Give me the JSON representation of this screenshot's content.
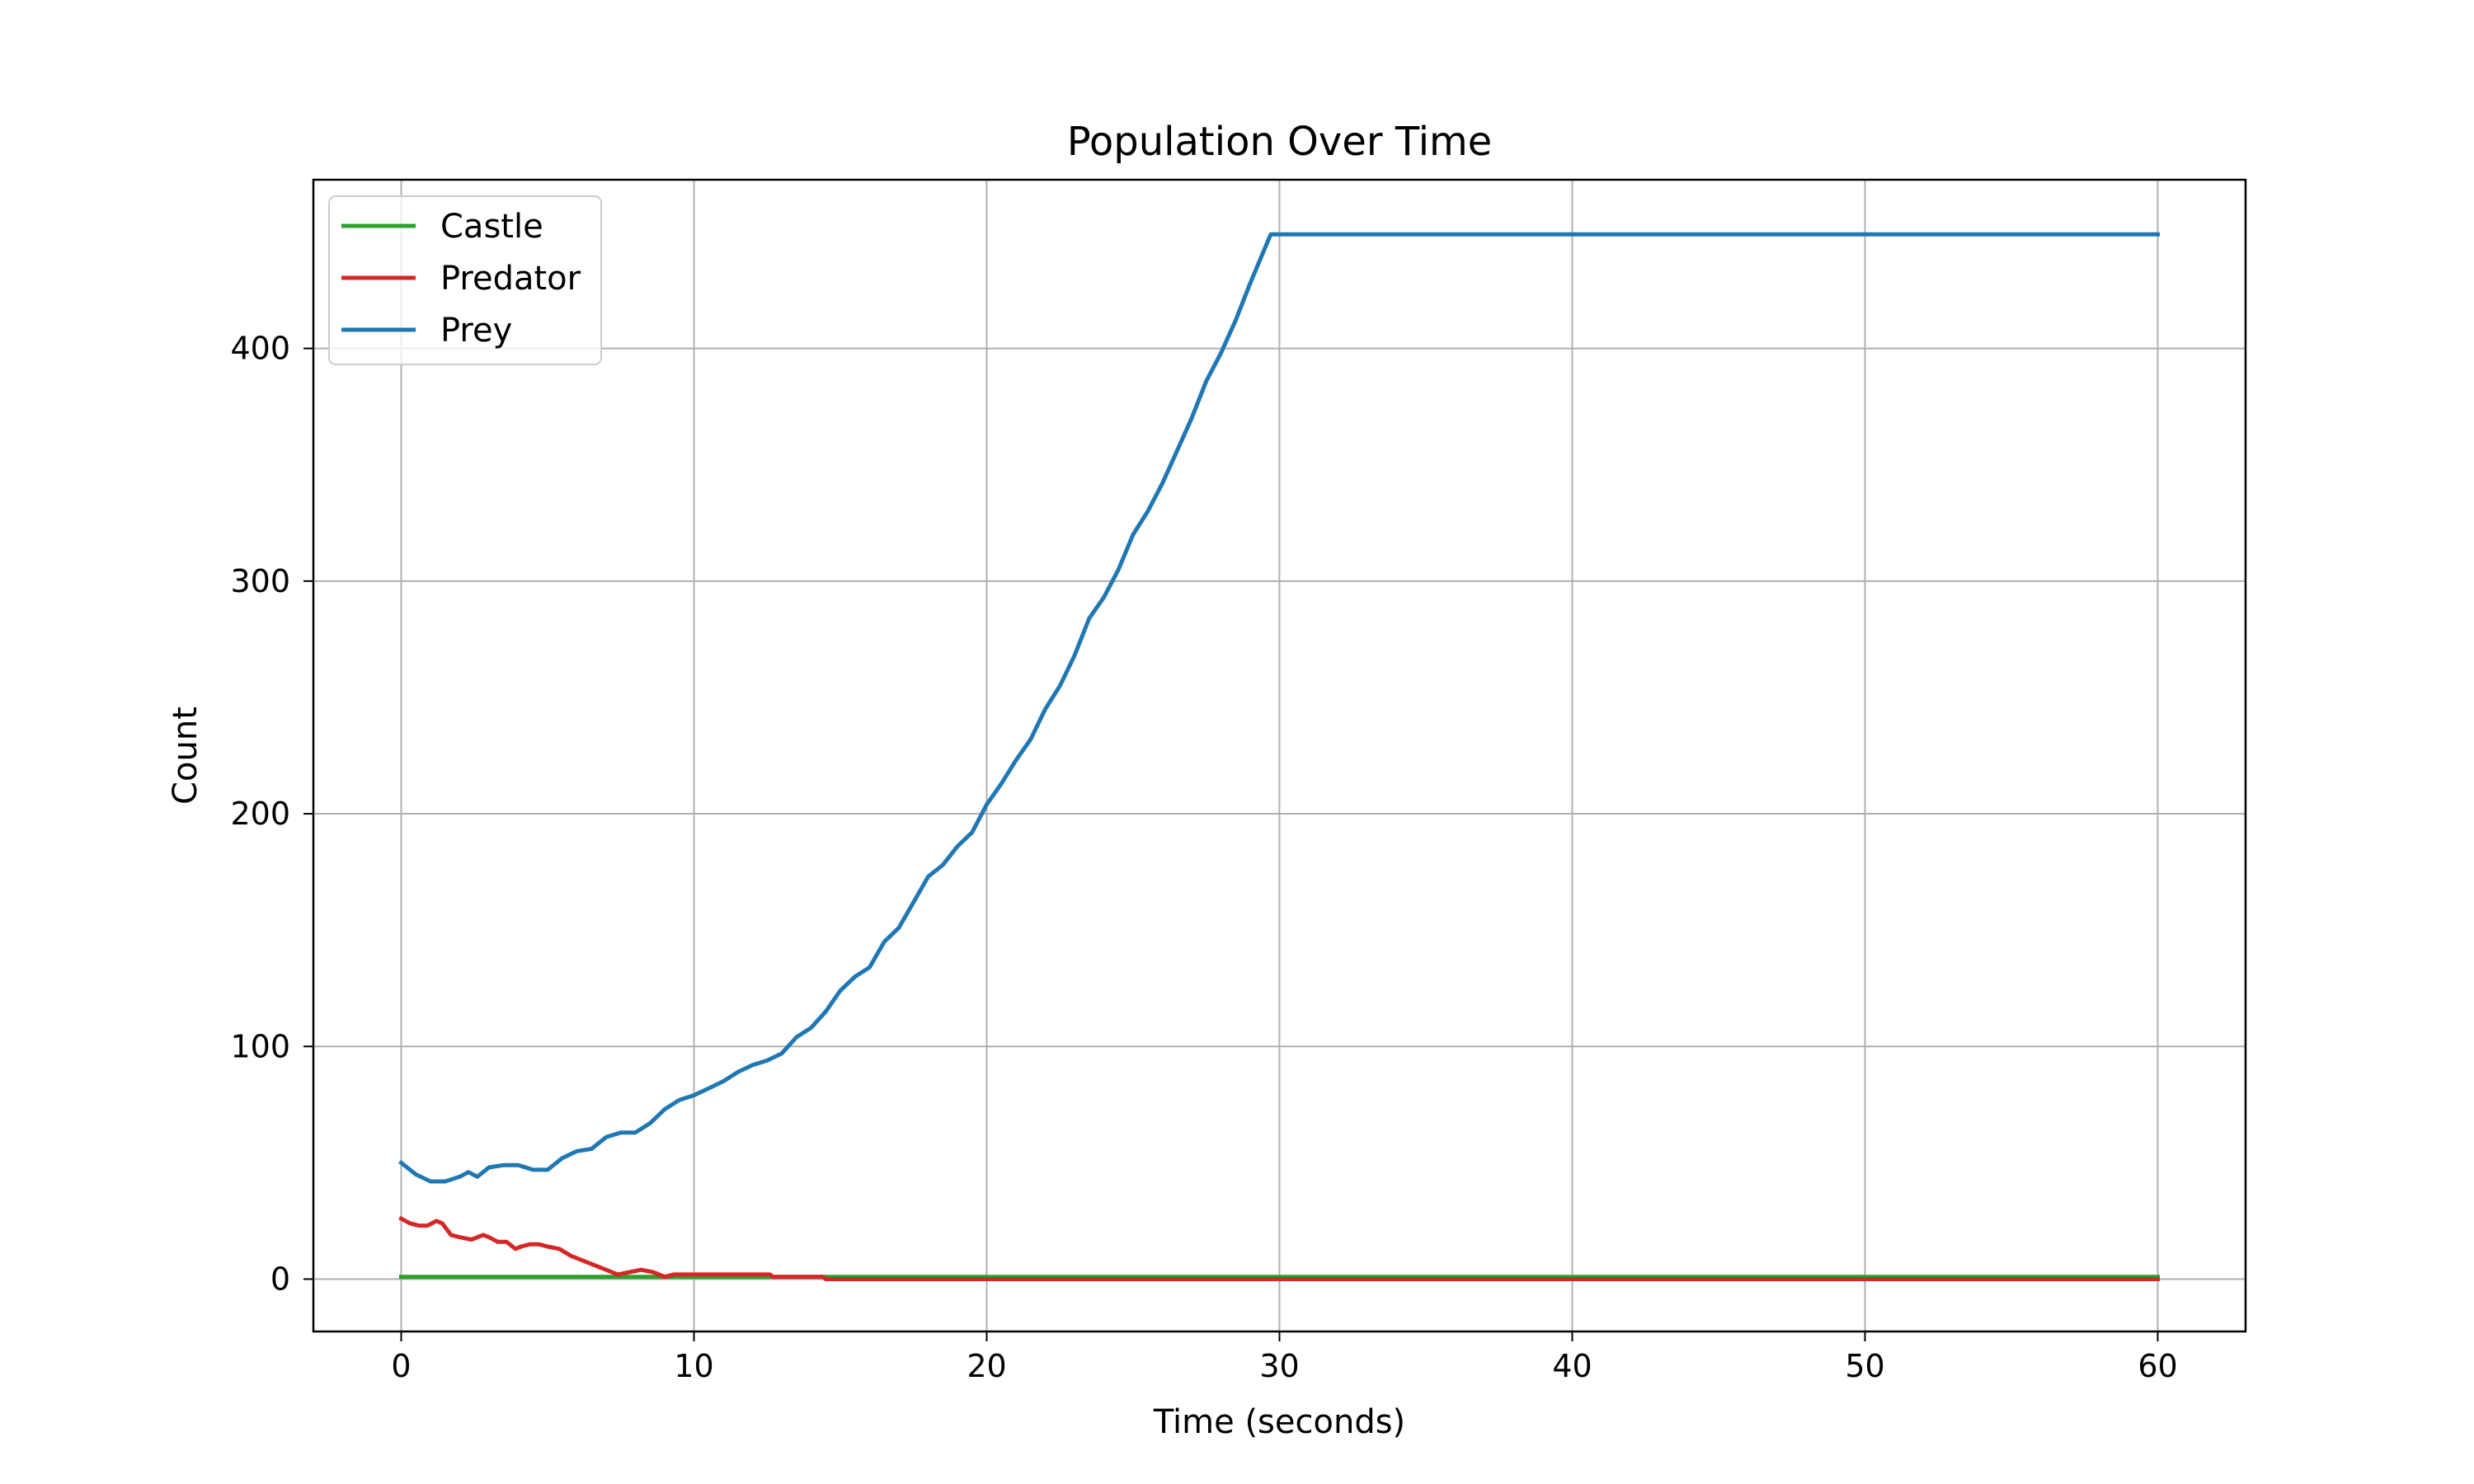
{
  "chart_data": {
    "type": "line",
    "title": "Population Over Time",
    "xlabel": "Time (seconds)",
    "ylabel": "Count",
    "xlim": [
      -3,
      63
    ],
    "ylim": [
      -22.5,
      472.5
    ],
    "xticks": [
      0,
      10,
      20,
      30,
      40,
      50,
      60
    ],
    "xtick_labels": [
      "0",
      "10",
      "20",
      "30",
      "40",
      "50",
      "60"
    ],
    "yticks": [
      0,
      100,
      200,
      300,
      400
    ],
    "ytick_labels": [
      "0",
      "100",
      "200",
      "300",
      "400"
    ],
    "grid": true,
    "legend_position": "top-left",
    "series": [
      {
        "name": "Castle",
        "color": "#2ca02c",
        "x": [
          0,
          60
        ],
        "y": [
          1,
          1
        ]
      },
      {
        "name": "Predator",
        "color": "#d62728",
        "x": [
          0,
          0.3,
          0.6,
          0.9,
          1.2,
          1.4,
          1.7,
          2.0,
          2.4,
          2.8,
          3.0,
          3.3,
          3.6,
          3.9,
          4.1,
          4.4,
          4.7,
          5.0,
          5.4,
          5.8,
          6.2,
          6.6,
          7.0,
          7.4,
          7.8,
          8.2,
          8.6,
          9.0,
          9.3,
          10.0,
          12.6,
          12.7,
          14.4,
          14.5,
          60
        ],
        "y": [
          26,
          24,
          23,
          23,
          25,
          24,
          19,
          18,
          17,
          19,
          18,
          16,
          16,
          13,
          14,
          15,
          15,
          14,
          13,
          10,
          8,
          6,
          4,
          2,
          3,
          4,
          3,
          1,
          2,
          2,
          2,
          1,
          1,
          0,
          0
        ]
      },
      {
        "name": "Prey",
        "color": "#1f77b4",
        "x": [
          0,
          0.5,
          1.0,
          1.5,
          2.0,
          2.3,
          2.6,
          3.0,
          3.5,
          4.0,
          4.5,
          5.0,
          5.5,
          6.0,
          6.5,
          7.0,
          7.5,
          8.0,
          8.5,
          9.0,
          9.5,
          10.0,
          10.5,
          11.0,
          11.5,
          12.0,
          12.5,
          13.0,
          13.5,
          14.0,
          14.5,
          15.0,
          15.5,
          16.0,
          16.5,
          17.0,
          17.5,
          18.0,
          18.5,
          19.0,
          19.5,
          20.0,
          20.5,
          21.0,
          21.5,
          22.0,
          22.5,
          23.0,
          23.5,
          24.0,
          24.5,
          25.0,
          25.5,
          26.0,
          26.5,
          27.0,
          27.5,
          28.0,
          28.5,
          29.0,
          29.4,
          29.7,
          30.0,
          60
        ],
        "y": [
          50,
          45,
          42,
          42,
          44,
          46,
          44,
          48,
          49,
          49,
          47,
          47,
          52,
          55,
          56,
          61,
          63,
          63,
          67,
          73,
          77,
          79,
          82,
          85,
          89,
          92,
          94,
          97,
          104,
          108,
          115,
          124,
          130,
          134,
          145,
          151,
          162,
          173,
          178,
          186,
          192,
          204,
          213,
          223,
          232,
          245,
          255,
          268,
          284,
          293,
          305,
          320,
          330,
          342,
          356,
          370,
          386,
          398,
          412,
          428,
          440,
          449,
          449,
          449
        ]
      }
    ]
  }
}
